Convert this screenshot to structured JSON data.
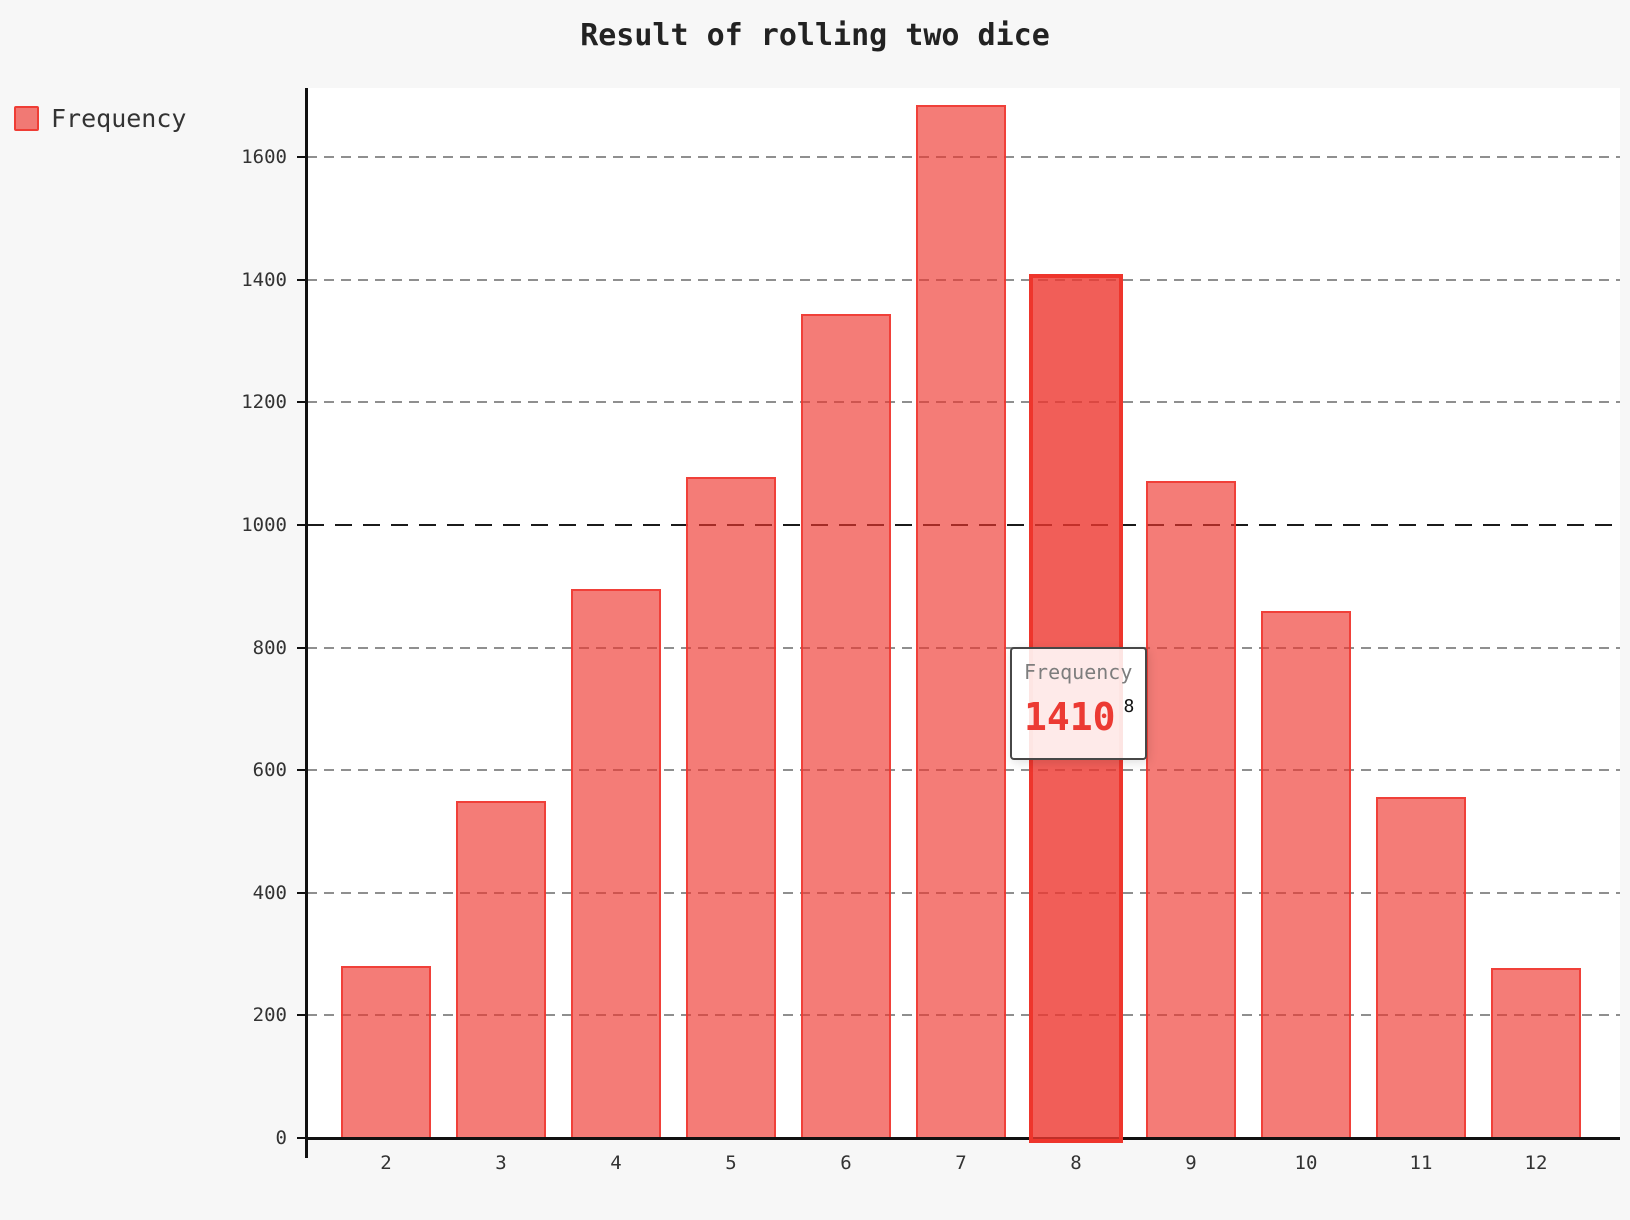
{
  "page": {
    "background": "#f7f7f7",
    "plot_background": "#ffffff"
  },
  "chart_data": {
    "type": "bar",
    "title": "Result of rolling two dice",
    "categories": [
      "2",
      "3",
      "4",
      "5",
      "6",
      "7",
      "8",
      "9",
      "10",
      "11",
      "12"
    ],
    "series": [
      {
        "name": "Frequency",
        "values": [
          280,
          550,
          895,
          1078,
          1345,
          1685,
          1410,
          1072,
          860,
          557,
          277
        ]
      }
    ],
    "xlabel": "",
    "ylabel": "",
    "ylim": [
      0,
      1713
    ],
    "y_ticks": [
      0,
      200,
      400,
      600,
      800,
      1000,
      1200,
      1400,
      1600
    ],
    "emphasized_gridline": 1000,
    "grid": true,
    "gridline_style": "dashed",
    "legend_position": "top-left",
    "highlighted_category": "8",
    "highlighted_value": 1410,
    "colors": {
      "bar_fill": "rgba(238,54,46,0.65)",
      "bar_border": "rgba(238,54,46,0.85)",
      "highlight_fill": "rgba(238,54,46,0.8)",
      "highlight_border": "#ee352c",
      "tooltip_value": "#ec3a33"
    }
  },
  "legend": {
    "label": "Frequency"
  },
  "tooltip": {
    "series": "Frequency",
    "category": "8",
    "value": "1410"
  }
}
